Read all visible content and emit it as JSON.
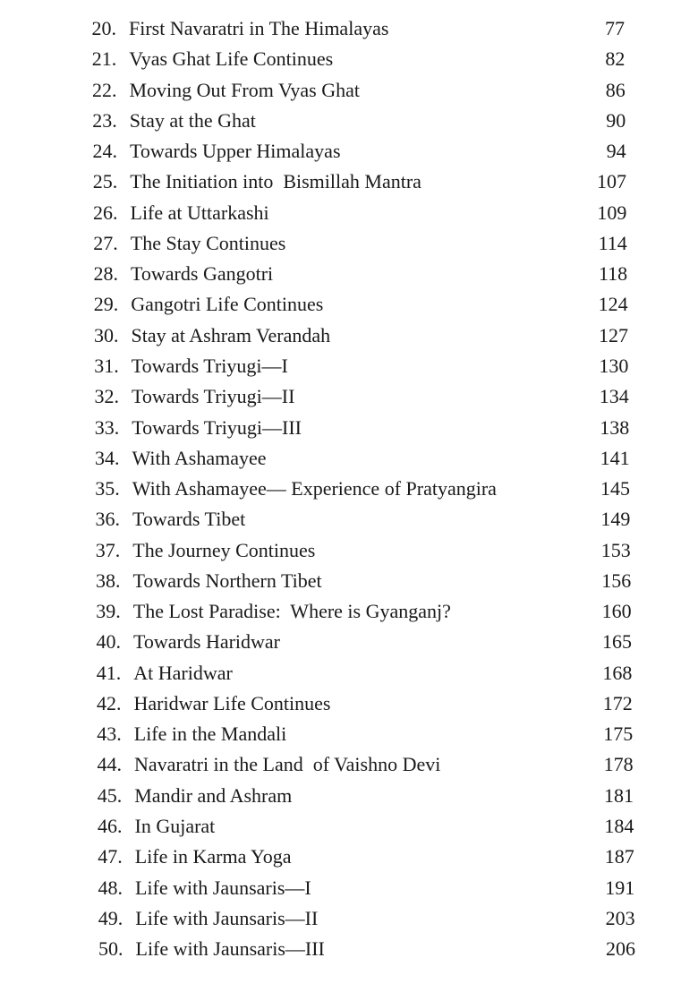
{
  "entries": [
    {
      "num": "20.",
      "title": "First Navaratri in The Himalayas",
      "page": "77"
    },
    {
      "num": "21.",
      "title": "Vyas Ghat Life Continues",
      "page": "82"
    },
    {
      "num": "22.",
      "title": "Moving Out From Vyas Ghat",
      "page": "86"
    },
    {
      "num": "23.",
      "title": "Stay at the Ghat",
      "page": "90"
    },
    {
      "num": "24.",
      "title": "Towards Upper Himalayas",
      "page": "94"
    },
    {
      "num": "25.",
      "title": "The Initiation into  Bismillah Mantra",
      "page": "107"
    },
    {
      "num": "26.",
      "title": "Life at Uttarkashi",
      "page": "109"
    },
    {
      "num": "27.",
      "title": "The Stay Continues",
      "page": "114"
    },
    {
      "num": "28.",
      "title": "Towards Gangotri",
      "page": "118"
    },
    {
      "num": "29.",
      "title": "Gangotri Life Continues",
      "page": "124"
    },
    {
      "num": "30.",
      "title": "Stay at Ashram Verandah",
      "page": "127"
    },
    {
      "num": "31.",
      "title": "Towards Triyugi—I",
      "page": "130"
    },
    {
      "num": "32.",
      "title": "Towards Triyugi—II",
      "page": "134"
    },
    {
      "num": "33.",
      "title": "Towards Triyugi—III",
      "page": "138"
    },
    {
      "num": "34.",
      "title": "With Ashamayee",
      "page": "141"
    },
    {
      "num": "35.",
      "title": "With Ashamayee— Experience of Pratyangira",
      "page": "145"
    },
    {
      "num": "36.",
      "title": "Towards Tibet",
      "page": "149"
    },
    {
      "num": "37.",
      "title": "The Journey Continues",
      "page": "153"
    },
    {
      "num": "38.",
      "title": "Towards Northern Tibet",
      "page": "156"
    },
    {
      "num": "39.",
      "title": "The Lost Paradise:  Where is Gyanganj?",
      "page": "160"
    },
    {
      "num": "40.",
      "title": "Towards Haridwar",
      "page": "165"
    },
    {
      "num": "41.",
      "title": "At Haridwar",
      "page": "168"
    },
    {
      "num": "42.",
      "title": "Haridwar Life Continues",
      "page": "172"
    },
    {
      "num": "43.",
      "title": "Life in the Mandali",
      "page": "175"
    },
    {
      "num": "44.",
      "title": "Navaratri in the Land  of Vaishno Devi",
      "page": "178"
    },
    {
      "num": "45.",
      "title": "Mandir and Ashram",
      "page": "181"
    },
    {
      "num": "46.",
      "title": "In Gujarat",
      "page": "184"
    },
    {
      "num": "47.",
      "title": "Life in Karma Yoga",
      "page": "187"
    },
    {
      "num": "48.",
      "title": "Life with Jaunsaris—I",
      "page": "191"
    },
    {
      "num": "49.",
      "title": "Life with Jaunsaris—II",
      "page": "203"
    },
    {
      "num": "50.",
      "title": "Life with Jaunsaris—III",
      "page": "206"
    }
  ]
}
